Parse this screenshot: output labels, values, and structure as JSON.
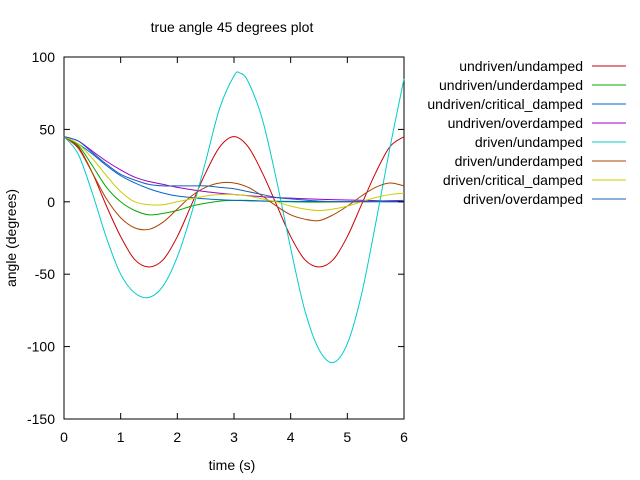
{
  "chart_data": {
    "type": "line",
    "title": "true angle 45 degrees plot",
    "xlabel": "time (s)",
    "ylabel": "angle (degrees)",
    "xlim": [
      0,
      6
    ],
    "ylim": [
      -150,
      100
    ],
    "xticks": [
      0,
      1,
      2,
      3,
      4,
      5,
      6
    ],
    "yticks": [
      -150,
      -100,
      -50,
      0,
      50,
      100
    ],
    "grid": false,
    "legend_position": "right-outside",
    "series": [
      {
        "name": "undriven/undamped",
        "color": "#cc0000",
        "x": [
          0,
          0.25,
          0.5,
          0.75,
          1.0,
          1.25,
          1.5,
          1.75,
          2.0,
          2.25,
          2.5,
          2.75,
          3.0,
          3.25,
          3.5,
          3.75,
          4.0,
          4.25,
          4.5,
          4.75,
          5.0,
          5.25,
          5.5,
          5.75,
          6.0
        ],
        "y": [
          45,
          38,
          20,
          -3,
          -24,
          -40,
          -45,
          -40,
          -24,
          -2,
          20,
          38,
          45,
          38,
          20,
          -2,
          -24,
          -40,
          -45,
          -40,
          -24,
          -2,
          20,
          38,
          45
        ]
      },
      {
        "name": "undriven/underdamped",
        "color": "#00aa00",
        "x": [
          0,
          0.25,
          0.5,
          0.75,
          1.0,
          1.25,
          1.5,
          1.75,
          2.0,
          2.25,
          2.5,
          2.75,
          3.0,
          3.25,
          3.5,
          3.75,
          4.0,
          4.5,
          5.0,
          5.5,
          6.0
        ],
        "y": [
          45,
          39,
          25,
          10,
          0,
          -6,
          -9,
          -8,
          -6,
          -3,
          -1,
          0.5,
          1,
          1,
          0.6,
          0.2,
          0,
          -0.2,
          0,
          0.1,
          0
        ]
      },
      {
        "name": "undriven/critical_damped",
        "color": "#0066cc",
        "x": [
          0,
          0.25,
          0.5,
          0.75,
          1.0,
          1.25,
          1.5,
          1.75,
          2.0,
          2.5,
          3.0,
          3.5,
          4.0,
          4.5,
          5.0,
          5.5,
          6.0
        ],
        "y": [
          45,
          40,
          33,
          25,
          18,
          13,
          9,
          6,
          4,
          2,
          1,
          0.5,
          0.3,
          0.2,
          0.1,
          0.05,
          0
        ]
      },
      {
        "name": "undriven/overdamped",
        "color": "#9900cc",
        "x": [
          0,
          0.25,
          0.5,
          0.75,
          1.0,
          1.25,
          1.5,
          1.75,
          2.0,
          2.5,
          3.0,
          3.5,
          4.0,
          4.5,
          5.0,
          5.5,
          6.0
        ],
        "y": [
          45,
          42,
          35,
          28,
          22,
          17,
          14,
          12,
          10,
          7,
          5,
          3.5,
          2.5,
          1.8,
          1.2,
          0.8,
          0
        ]
      },
      {
        "name": "driven/undamped",
        "color": "#00cccc",
        "x": [
          0,
          0.25,
          0.5,
          0.75,
          1.0,
          1.25,
          1.5,
          1.75,
          2.0,
          2.25,
          2.5,
          2.75,
          3.0,
          3.1,
          3.25,
          3.5,
          3.75,
          4.0,
          4.25,
          4.5,
          4.75,
          5.0,
          5.25,
          5.5,
          5.75,
          6.0
        ],
        "y": [
          45,
          33,
          6,
          -25,
          -50,
          -63,
          -66,
          -58,
          -38,
          -8,
          28,
          65,
          87,
          89,
          83,
          57,
          15,
          -32,
          -75,
          -102,
          -111,
          -98,
          -64,
          -15,
          37,
          85
        ]
      },
      {
        "name": "driven/underdamped",
        "color": "#aa4400",
        "x": [
          0,
          0.25,
          0.5,
          0.75,
          1.0,
          1.25,
          1.5,
          1.75,
          2.0,
          2.25,
          2.5,
          2.75,
          3.0,
          3.25,
          3.5,
          3.75,
          4.0,
          4.25,
          4.5,
          4.75,
          5.0,
          5.25,
          5.5,
          5.75,
          6.0
        ],
        "y": [
          45,
          37,
          20,
          2,
          -11,
          -18,
          -19,
          -14,
          -5,
          4,
          10,
          13,
          13,
          10,
          4,
          -3,
          -9,
          -12,
          -13,
          -9,
          -3,
          4,
          10,
          13,
          11
        ]
      },
      {
        "name": "driven/critical_damped",
        "color": "#cccc00",
        "x": [
          0,
          0.25,
          0.5,
          0.75,
          1.0,
          1.25,
          1.5,
          1.75,
          2.0,
          2.25,
          2.5,
          2.75,
          3.0,
          3.25,
          3.5,
          3.75,
          4.0,
          4.25,
          4.5,
          4.75,
          5.0,
          5.25,
          5.5,
          5.75,
          6.0
        ],
        "y": [
          45,
          40,
          30,
          18,
          7,
          0,
          -2,
          -2,
          0,
          2,
          4,
          5,
          5,
          4,
          2,
          0,
          -3,
          -5,
          -6,
          -5,
          -3,
          0,
          3,
          5,
          6
        ]
      },
      {
        "name": "driven/overdamped",
        "color": "#1a5fb4",
        "x": [
          0,
          0.25,
          0.5,
          0.75,
          1.0,
          1.25,
          1.5,
          1.75,
          2.0,
          2.25,
          2.5,
          2.75,
          3.0,
          3.25,
          3.5,
          3.75,
          4.0,
          4.5,
          5.0,
          5.5,
          6.0
        ],
        "y": [
          45,
          42,
          34,
          26,
          19,
          15,
          12,
          11,
          11,
          11,
          11,
          10,
          9,
          7,
          5,
          3,
          2,
          0.5,
          0,
          0.5,
          1
        ]
      }
    ]
  }
}
